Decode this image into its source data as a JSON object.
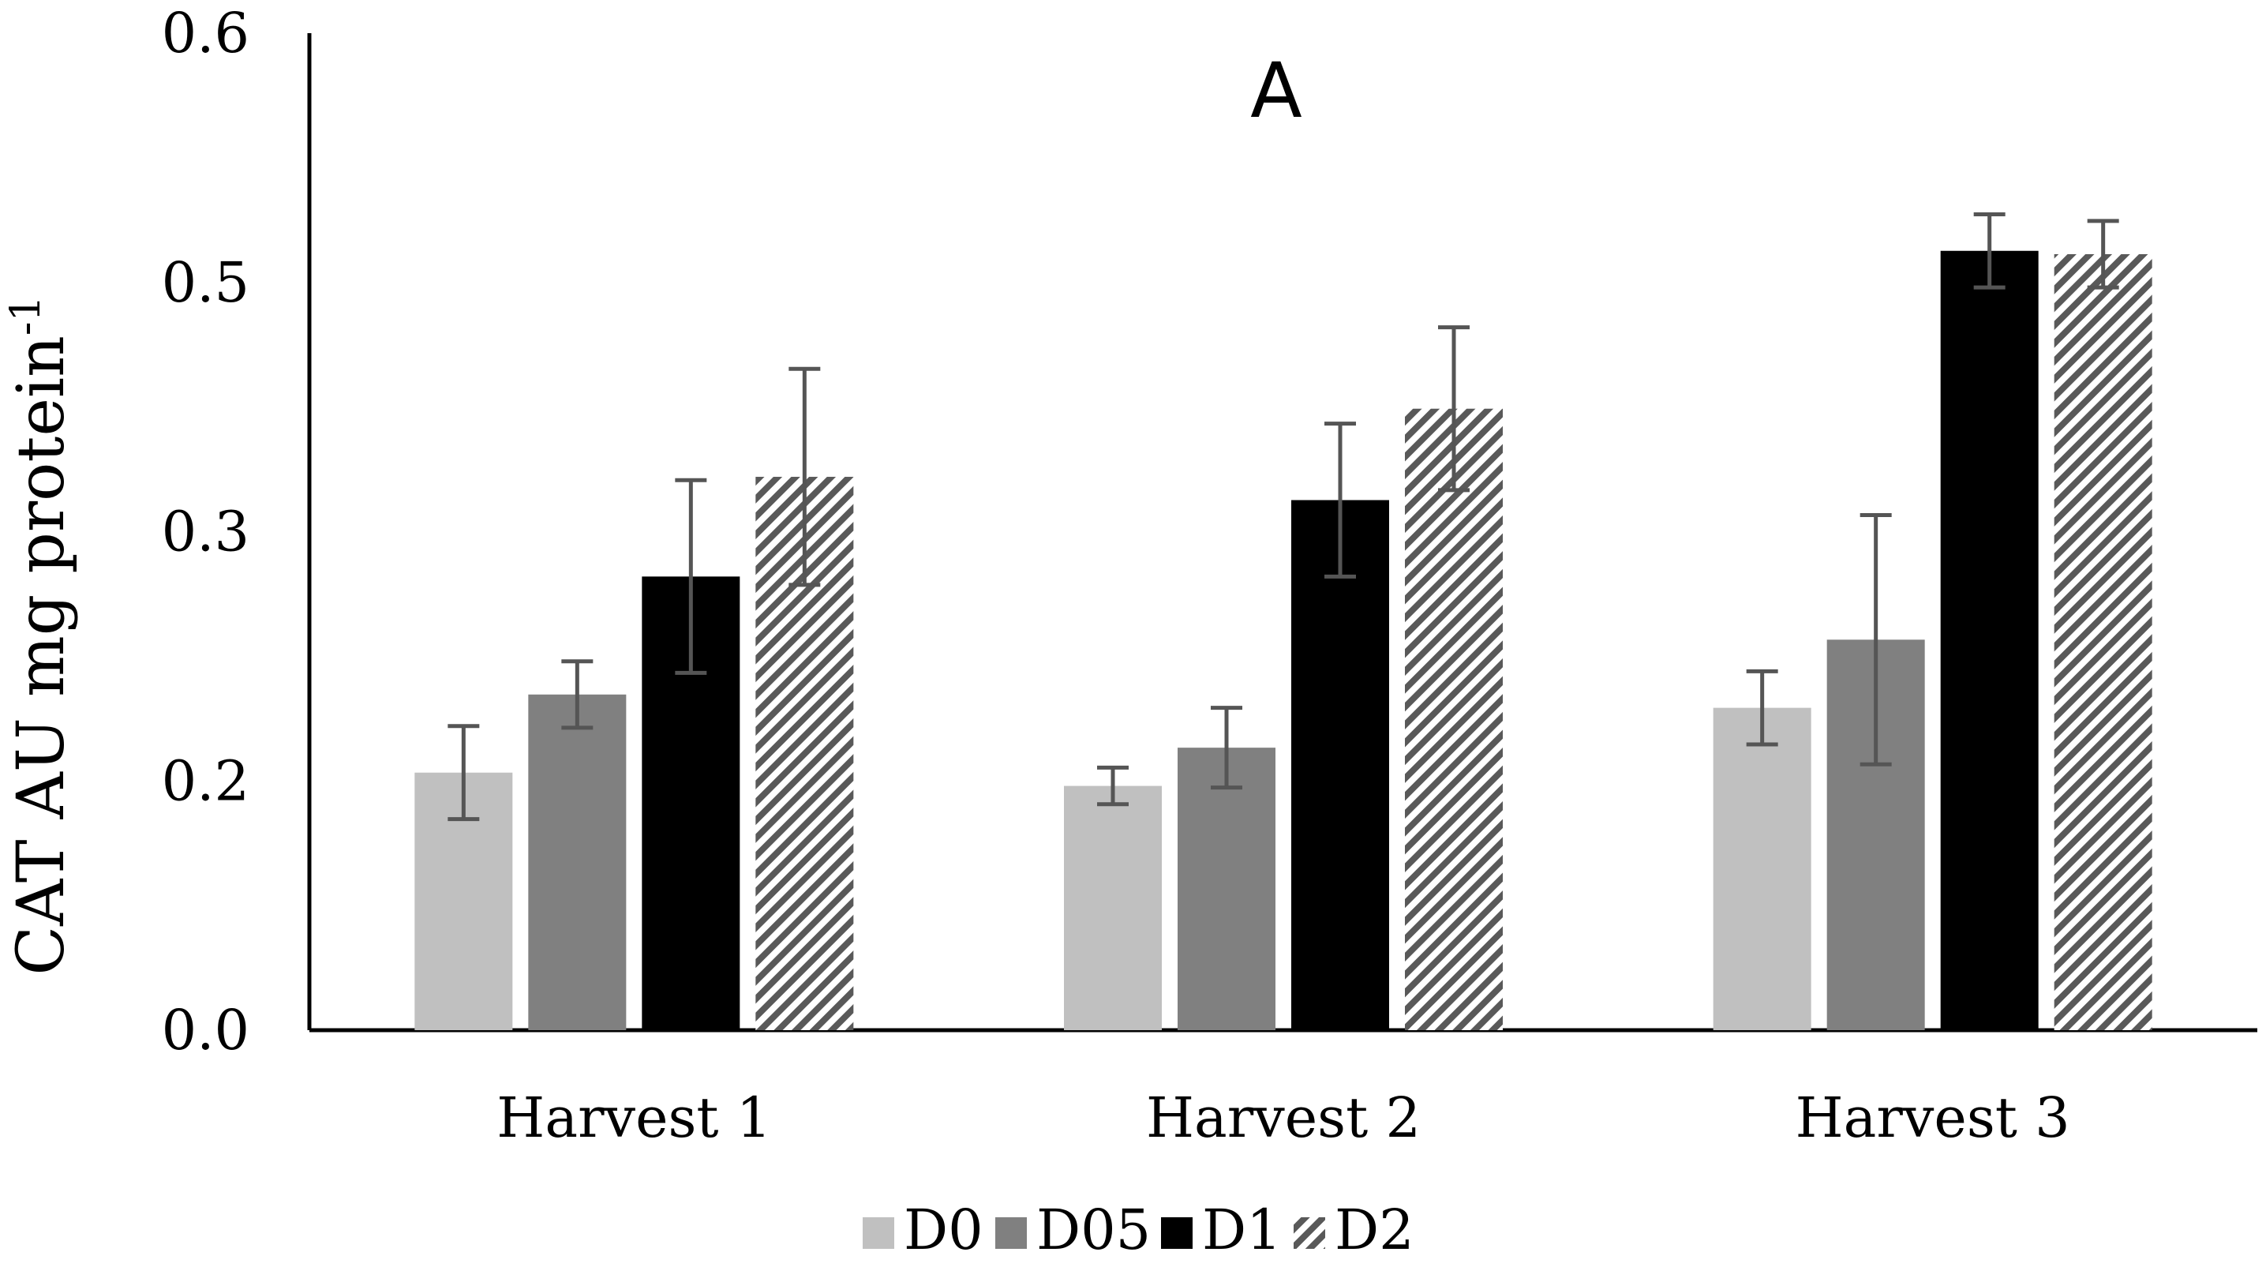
{
  "chart_data": {
    "type": "bar",
    "title": "A",
    "ylabel": "CAT AU mg protein",
    "ylabel_superscript": "-1",
    "xlabel": "",
    "ylim": [
      0,
      0.6
    ],
    "ytick_labels": [
      "0.0",
      "0.2",
      "0.3",
      "0.5",
      "0.6"
    ],
    "categories": [
      "Harvest 1",
      "Harvest 2",
      "Harvest 3"
    ],
    "series": [
      {
        "name": "D0",
        "color": "#c0c0c0",
        "pattern": "solid",
        "values": [
          0.155,
          0.147,
          0.194
        ],
        "errors": [
          0.028,
          0.011,
          0.022
        ]
      },
      {
        "name": "D05",
        "color": "#808080",
        "pattern": "solid",
        "values": [
          0.202,
          0.17,
          0.235
        ],
        "errors": [
          0.02,
          0.024,
          0.075
        ]
      },
      {
        "name": "D1",
        "color": "#000000",
        "pattern": "solid",
        "values": [
          0.273,
          0.319,
          0.469
        ],
        "errors": [
          0.058,
          0.046,
          0.022
        ]
      },
      {
        "name": "D2",
        "color": "#595959",
        "pattern": "diagonal-stripes",
        "values": [
          0.333,
          0.374,
          0.467
        ],
        "errors": [
          0.065,
          0.049,
          0.02
        ]
      }
    ],
    "legend_position": "bottom",
    "grid": false
  }
}
